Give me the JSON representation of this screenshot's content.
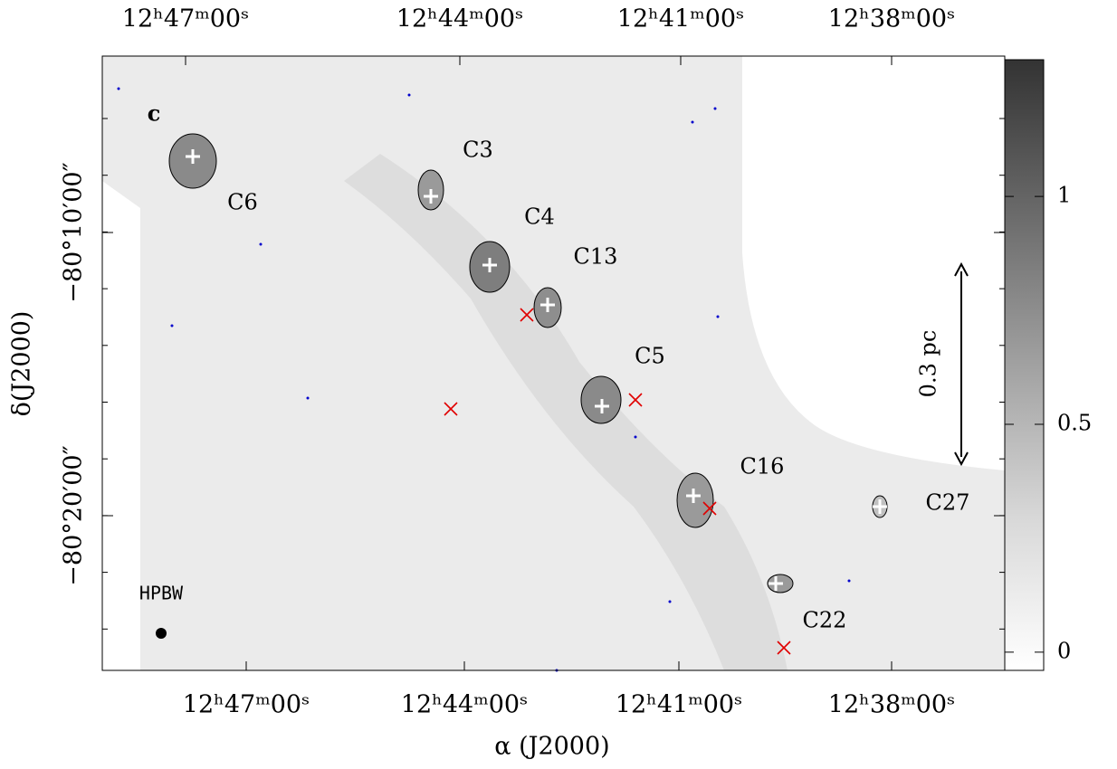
{
  "panel_label": "c",
  "x_axis": {
    "label": "α (J2000)",
    "top_ticks": [
      "12ʰ47ᵐ00ˢ",
      "12ʰ44ᵐ00ˢ",
      "12ʰ41ᵐ00ˢ",
      "12ʰ38ᵐ00ˢ"
    ],
    "bottom_ticks": [
      "12ʰ47ᵐ00ˢ",
      "12ʰ44ᵐ00ˢ",
      "12ʰ41ᵐ00ˢ",
      "12ʰ38ᵐ00ˢ"
    ]
  },
  "y_axis": {
    "label": "δ(J2000)",
    "ticks": [
      "−80°10′00″",
      "−80°20′00″"
    ]
  },
  "sources": [
    "C6",
    "C3",
    "C4",
    "C13",
    "C5",
    "C16",
    "C27",
    "C22"
  ],
  "scale_bar": "0.3 pc",
  "beam": "HPBW",
  "colorbar": {
    "lim": [
      -0.04,
      1.3
    ],
    "ticks": [
      0,
      0.5,
      1
    ]
  }
}
